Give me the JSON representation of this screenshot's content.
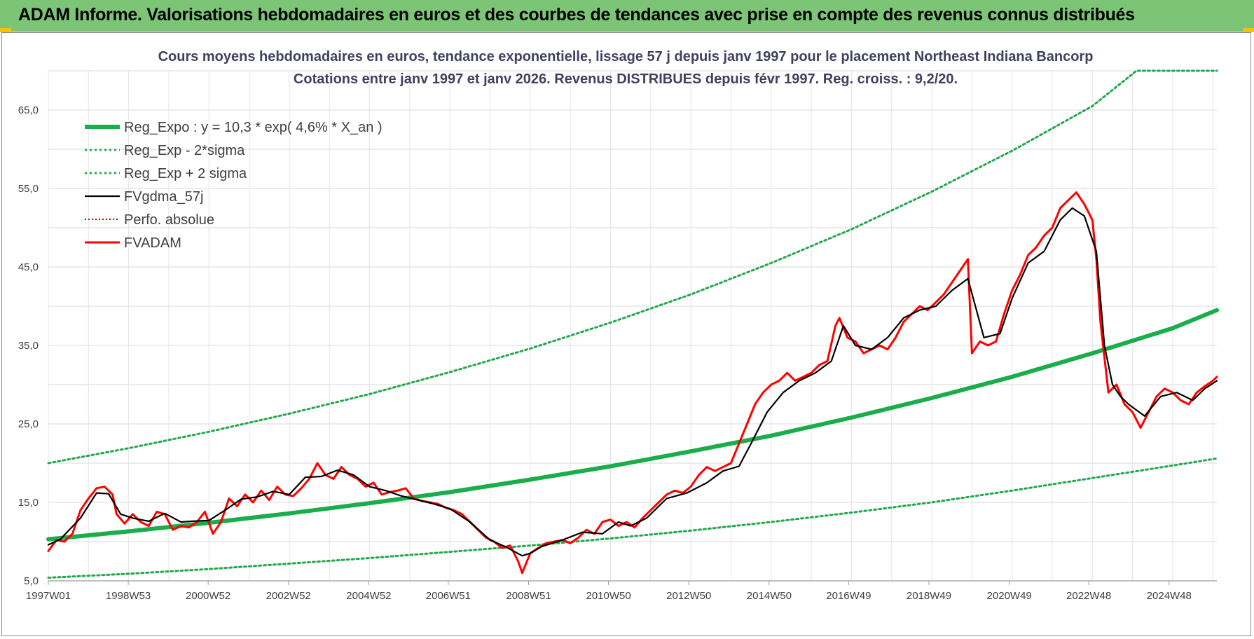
{
  "header": {
    "title": "ADAM Informe. Valorisations hebdomadaires en euros et des courbes de tendances avec prise en compte des revenus connus distribués"
  },
  "colors": {
    "banner": "#7cc576",
    "trend": "#1aad4b",
    "band": "#22a84a",
    "smooth": "#000000",
    "price": "#ff0000",
    "perfo": "#c00000"
  },
  "chart_data": {
    "type": "line",
    "title": "Cours moyens hebdomadaires en euros, tendance exponentielle, lissage 57 j depuis janv 1997 pour le placement Northeast Indiana Bancorp",
    "subtitle": "Cotations entre janv 1997 et janv 2026. Revenus DISTRIBUES depuis févr 1997. Reg. croiss. : 9,2/20.",
    "xlabel": "",
    "ylabel": "",
    "xlim": [
      1997.0,
      2026.1
    ],
    "ylim": [
      5,
      70
    ],
    "grid": true,
    "legend_position": "top-left",
    "x_ticks": [
      {
        "x": 1997.0,
        "label": "1997W01"
      },
      {
        "x": 1998.99,
        "label": "1998W53"
      },
      {
        "x": 2000.98,
        "label": "2000W52"
      },
      {
        "x": 2002.98,
        "label": "2002W52"
      },
      {
        "x": 2004.98,
        "label": "2004W52"
      },
      {
        "x": 2006.96,
        "label": "2006W51"
      },
      {
        "x": 2008.96,
        "label": "2008W51"
      },
      {
        "x": 2010.95,
        "label": "2010W50"
      },
      {
        "x": 2012.95,
        "label": "2012W50"
      },
      {
        "x": 2014.95,
        "label": "2014W50"
      },
      {
        "x": 2016.93,
        "label": "2016W49"
      },
      {
        "x": 2018.93,
        "label": "2018W49"
      },
      {
        "x": 2020.93,
        "label": "2020W49"
      },
      {
        "x": 2022.91,
        "label": "2022W48"
      },
      {
        "x": 2024.91,
        "label": "2024W48"
      }
    ],
    "y_ticks": [
      {
        "y": 5,
        "label": "5,0"
      },
      {
        "y": 15,
        "label": "15,0"
      },
      {
        "y": 25,
        "label": "25,0"
      },
      {
        "y": 35,
        "label": "35,0"
      },
      {
        "y": 45,
        "label": "45,0"
      },
      {
        "y": 55,
        "label": "55,0"
      },
      {
        "y": 65,
        "label": "65,0"
      }
    ],
    "series": [
      {
        "name": "Reg_Expo : y = 10,3 * exp( 4,6% *  X_an )",
        "style": "solid-thick",
        "x": [
          1997.0,
          1999,
          2001,
          2003,
          2005,
          2007,
          2009,
          2011,
          2013,
          2015,
          2017,
          2019,
          2021,
          2023,
          2025,
          2026.1
        ],
        "y": [
          10.3,
          11.3,
          12.4,
          13.6,
          14.9,
          16.3,
          17.9,
          19.6,
          21.5,
          23.5,
          25.8,
          28.3,
          31.0,
          34.0,
          37.2,
          39.5
        ]
      },
      {
        "name": "Reg_Exp - 2*sigma",
        "style": "dotted",
        "x": [
          1997.0,
          1999,
          2001,
          2003,
          2005,
          2007,
          2009,
          2011,
          2013,
          2015,
          2017,
          2019,
          2021,
          2023,
          2025,
          2026.1
        ],
        "y": [
          5.4,
          5.9,
          6.5,
          7.2,
          7.9,
          8.7,
          9.5,
          10.4,
          11.4,
          12.5,
          13.7,
          15.0,
          16.5,
          18.1,
          19.7,
          20.6
        ]
      },
      {
        "name": "Reg_Exp + 2 sigma",
        "style": "dotted",
        "x": [
          1997.0,
          1999,
          2001,
          2003,
          2005,
          2007,
          2009,
          2011,
          2013,
          2015,
          2017,
          2019,
          2021,
          2023,
          2024.1,
          2026.1
        ],
        "y": [
          20.0,
          21.9,
          24.0,
          26.3,
          28.8,
          31.6,
          34.6,
          37.9,
          41.5,
          45.5,
          49.8,
          54.6,
          59.8,
          65.5,
          70.0,
          70.0
        ]
      },
      {
        "name": "FVgdma_57j",
        "style": "solid",
        "x": [
          1997.0,
          1997.3,
          1997.8,
          1998.2,
          1998.5,
          1998.8,
          1999.1,
          1999.5,
          1999.9,
          2000.3,
          2000.6,
          2001.0,
          2001.4,
          2001.8,
          2002.2,
          2002.6,
          2003.0,
          2003.4,
          2003.8,
          2004.2,
          2004.6,
          2005.0,
          2005.4,
          2005.8,
          2006.2,
          2006.6,
          2007.0,
          2007.5,
          2008.0,
          2008.4,
          2008.8,
          2009.0,
          2009.3,
          2009.8,
          2010.3,
          2010.8,
          2011.2,
          2011.5,
          2011.9,
          2012.4,
          2012.9,
          2013.4,
          2013.8,
          2014.2,
          2014.5,
          2014.9,
          2015.3,
          2015.7,
          2016.1,
          2016.5,
          2016.8,
          2017.1,
          2017.5,
          2017.9,
          2018.3,
          2018.7,
          2019.1,
          2019.5,
          2019.9,
          2020.3,
          2020.7,
          2021.0,
          2021.4,
          2021.8,
          2022.2,
          2022.5,
          2022.8,
          2023.1,
          2023.3,
          2023.5,
          2023.7,
          2023.9,
          2024.3,
          2024.7,
          2025.1,
          2025.5,
          2025.8,
          2026.1
        ],
        "y": [
          9.6,
          10.3,
          13.0,
          16.2,
          16.1,
          13.5,
          13.0,
          12.6,
          13.6,
          12.5,
          12.6,
          12.7,
          14.0,
          15.4,
          15.7,
          16.4,
          16.0,
          18.2,
          18.3,
          19.1,
          18.5,
          17.0,
          16.5,
          15.8,
          15.3,
          14.8,
          14.2,
          12.5,
          10.2,
          9.3,
          8.2,
          8.5,
          9.4,
          10.2,
          11.2,
          11.0,
          12.5,
          12.0,
          13.0,
          15.5,
          16.2,
          17.5,
          19.0,
          19.6,
          22.5,
          26.5,
          29.0,
          30.5,
          31.5,
          33.0,
          37.5,
          35.0,
          34.5,
          36.0,
          38.5,
          39.5,
          40.0,
          42.0,
          43.5,
          36.0,
          36.5,
          41.0,
          45.5,
          47.0,
          51.0,
          52.5,
          51.5,
          47.0,
          35.0,
          30.0,
          28.5,
          27.5,
          26.0,
          28.5,
          29.0,
          28.0,
          29.5,
          30.5
        ]
      },
      {
        "name": "Perfo. absolue",
        "style": "dotted-thin",
        "x": [],
        "y": []
      },
      {
        "name": "FVADAM",
        "style": "solid-red",
        "x": [
          1997.0,
          1997.2,
          1997.4,
          1997.6,
          1997.8,
          1998.0,
          1998.2,
          1998.4,
          1998.6,
          1998.7,
          1998.9,
          1999.1,
          1999.3,
          1999.5,
          1999.7,
          1999.9,
          2000.1,
          2000.3,
          2000.5,
          2000.7,
          2000.9,
          2001.1,
          2001.3,
          2001.5,
          2001.7,
          2001.9,
          2002.1,
          2002.3,
          2002.5,
          2002.7,
          2002.9,
          2003.1,
          2003.3,
          2003.5,
          2003.7,
          2003.9,
          2004.1,
          2004.3,
          2004.5,
          2004.7,
          2004.9,
          2005.1,
          2005.3,
          2005.5,
          2005.7,
          2005.9,
          2006.1,
          2006.3,
          2006.5,
          2006.7,
          2006.9,
          2007.1,
          2007.3,
          2007.5,
          2007.7,
          2007.9,
          2008.1,
          2008.3,
          2008.5,
          2008.7,
          2008.8,
          2009.0,
          2009.2,
          2009.4,
          2009.6,
          2009.8,
          2010.0,
          2010.2,
          2010.4,
          2010.6,
          2010.8,
          2011.0,
          2011.2,
          2011.4,
          2011.6,
          2011.8,
          2012.0,
          2012.2,
          2012.4,
          2012.6,
          2012.8,
          2013.0,
          2013.2,
          2013.4,
          2013.6,
          2013.8,
          2014.0,
          2014.2,
          2014.4,
          2014.6,
          2014.8,
          2015.0,
          2015.2,
          2015.4,
          2015.6,
          2015.8,
          2016.0,
          2016.2,
          2016.4,
          2016.6,
          2016.7,
          2016.9,
          2017.1,
          2017.3,
          2017.5,
          2017.7,
          2017.9,
          2018.1,
          2018.3,
          2018.5,
          2018.7,
          2018.9,
          2019.1,
          2019.3,
          2019.5,
          2019.7,
          2019.9,
          2020.0,
          2020.2,
          2020.4,
          2020.6,
          2020.8,
          2021.0,
          2021.2,
          2021.4,
          2021.6,
          2021.8,
          2022.0,
          2022.2,
          2022.4,
          2022.6,
          2022.8,
          2023.0,
          2023.1,
          2023.2,
          2023.4,
          2023.6,
          2023.8,
          2024.0,
          2024.2,
          2024.4,
          2024.6,
          2024.8,
          2025.0,
          2025.2,
          2025.4,
          2025.6,
          2025.8,
          2026.0,
          2026.1
        ],
        "y": [
          8.8,
          10.2,
          10.0,
          11.0,
          14.0,
          15.5,
          16.8,
          17.0,
          16.0,
          13.5,
          12.3,
          13.5,
          12.5,
          12.0,
          13.8,
          13.5,
          11.5,
          12.0,
          11.8,
          12.5,
          13.8,
          11.0,
          12.5,
          15.5,
          14.5,
          16.0,
          15.0,
          16.5,
          15.3,
          17.0,
          16.0,
          15.8,
          16.8,
          18.0,
          20.0,
          18.5,
          18.0,
          19.5,
          18.5,
          18.0,
          17.0,
          17.5,
          16.0,
          16.3,
          16.5,
          16.8,
          15.5,
          15.2,
          15.0,
          14.8,
          14.3,
          14.0,
          13.5,
          12.5,
          11.5,
          10.5,
          10.0,
          9.2,
          9.5,
          7.5,
          6.0,
          8.5,
          9.2,
          9.8,
          10.0,
          10.2,
          9.8,
          10.5,
          11.5,
          11.0,
          12.5,
          12.8,
          12.0,
          12.5,
          11.8,
          13.0,
          14.0,
          15.0,
          16.0,
          16.5,
          16.2,
          17.0,
          18.5,
          19.5,
          19.0,
          19.5,
          20.0,
          22.5,
          25.0,
          27.5,
          29.0,
          30.0,
          30.5,
          31.5,
          30.5,
          31.0,
          31.5,
          32.5,
          33.0,
          37.5,
          38.5,
          36.0,
          35.5,
          34.0,
          34.5,
          35.0,
          34.5,
          36.0,
          38.0,
          39.0,
          40.0,
          39.5,
          40.5,
          41.5,
          43.0,
          44.5,
          46.0,
          34.0,
          35.5,
          35.0,
          35.5,
          39.0,
          42.0,
          44.0,
          46.5,
          47.5,
          49.0,
          50.0,
          52.5,
          53.5,
          54.5,
          53.0,
          51.0,
          46.0,
          38.0,
          29.0,
          30.0,
          27.5,
          26.5,
          24.5,
          26.5,
          28.5,
          29.5,
          29.0,
          28.0,
          27.5,
          29.0,
          29.8,
          30.5,
          31.0
        ]
      }
    ]
  }
}
